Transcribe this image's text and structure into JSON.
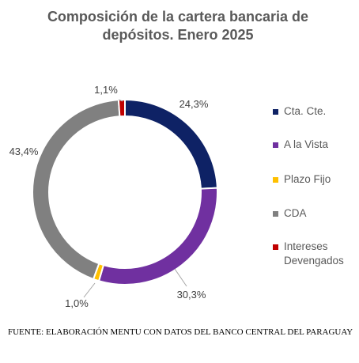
{
  "chart_data": {
    "type": "pie",
    "title": "Composición de la cartera bancaria de depósitos. Enero 2025",
    "categories": [
      "Cta. Cte.",
      "A la Vista",
      "Plazo Fijo",
      "CDA",
      "Intereses Devengados"
    ],
    "values": [
      24.3,
      30.3,
      1.0,
      43.4,
      1.1
    ],
    "value_labels": [
      "24,3%",
      "30,3%",
      "1,0%",
      "43,4%",
      "1,1%"
    ],
    "colors": [
      "#0e2265",
      "#7030a0",
      "#ffc000",
      "#808080",
      "#c00000"
    ],
    "donut": true,
    "legend_position": "right"
  },
  "source_note": "FUENTE: ELABORACIÓN MENTU CON DATOS DEL BANCO CENTRAL DEL PARAGUAY"
}
